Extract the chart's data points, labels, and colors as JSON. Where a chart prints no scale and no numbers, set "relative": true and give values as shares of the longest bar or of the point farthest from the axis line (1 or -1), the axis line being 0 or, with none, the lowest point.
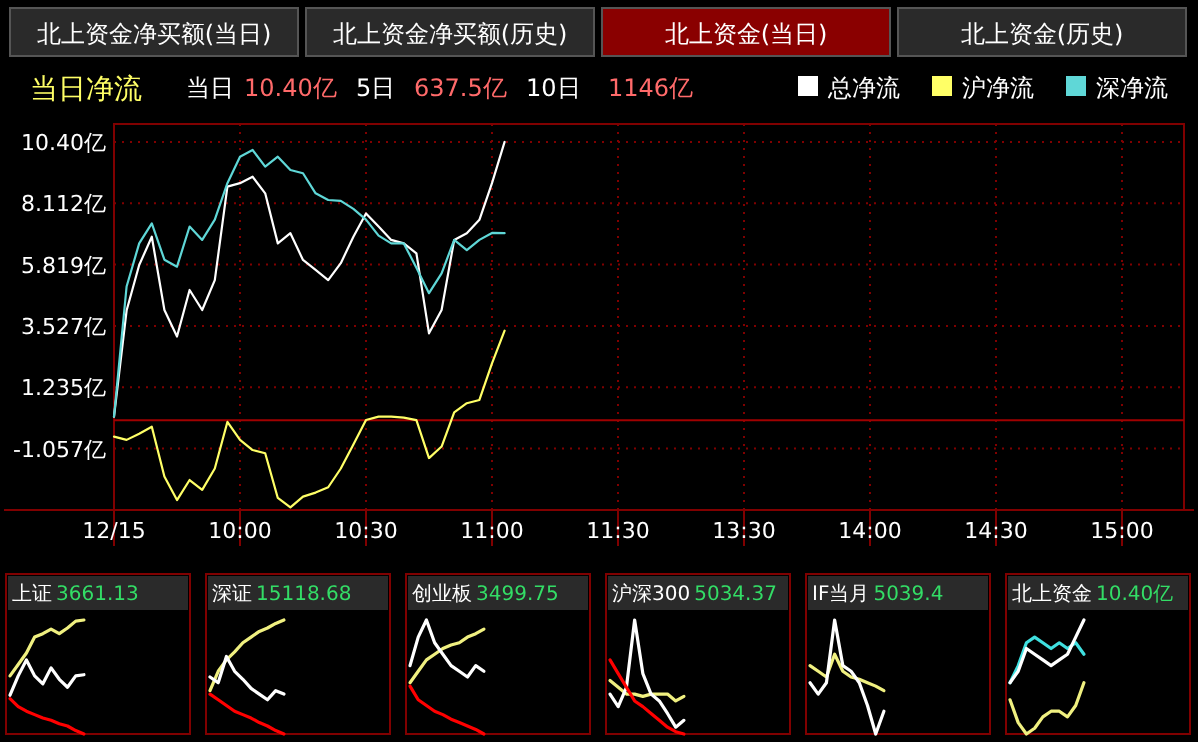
{
  "chart_data": [
    {
      "type": "line",
      "title": "当日净流",
      "annotations": [
        "北上资金净买额(当日)",
        "北上资金净买额(历史)",
        "北上资金(当日)",
        "北上资金(历史)",
        "当日",
        "10.40亿",
        "5日",
        "637.5亿",
        "10日",
        "1146亿"
      ],
      "categories": [
        "12/15",
        null,
        null,
        null,
        null,
        null,
        null,
        null,
        null,
        null,
        "10:00",
        null,
        null,
        null,
        null,
        null,
        null,
        null,
        null,
        null,
        "10:30",
        null,
        null,
        null,
        null,
        null,
        null,
        null,
        null,
        null,
        "11:00",
        null,
        null,
        null,
        null,
        null,
        null,
        null,
        null,
        null,
        "11:30",
        null,
        null,
        null,
        null,
        null,
        null,
        null,
        null,
        null,
        "13:30",
        null,
        null,
        null,
        null,
        null,
        null,
        null,
        null,
        null,
        "14:00",
        null,
        null,
        null,
        null,
        null,
        null,
        null,
        null,
        null,
        "14:30",
        null,
        null,
        null,
        null,
        null,
        null,
        null,
        null,
        null,
        "15:00"
      ],
      "ylim": [
        -3.35,
        11.07
      ],
      "yticks": [
        {
          "value": -1.057,
          "label": "-1.057亿"
        },
        {
          "value": 1.235,
          "label": "1.235亿"
        },
        {
          "value": 3.527,
          "label": "3.527亿"
        },
        {
          "value": 5.819,
          "label": "5.819亿"
        },
        {
          "value": 8.112,
          "label": "8.112亿"
        },
        {
          "value": 10.4,
          "label": "10.40亿"
        }
      ],
      "grid": true,
      "legend": "top right",
      "ref_lines": [
        {
          "axis": "y",
          "value": 0,
          "color": "#a00000"
        }
      ],
      "series": [
        {
          "name": "总净流",
          "color": "#ffffff",
          "values": [
            0.14,
            4.1,
            5.8,
            6.86,
            4.12,
            3.13,
            4.87,
            4.12,
            5.24,
            8.73,
            8.86,
            9.1,
            8.48,
            6.61,
            6.99,
            5.99,
            5.62,
            5.24,
            5.87,
            6.86,
            7.73,
            7.24,
            6.74,
            6.61,
            6.24,
            3.25,
            4.12,
            6.74,
            6.99,
            7.49,
            8.86,
            10.4,
            null,
            null,
            null,
            null,
            null,
            null,
            null,
            null,
            null,
            null,
            null,
            null,
            null,
            null,
            null,
            null,
            null,
            null,
            null,
            null,
            null,
            null,
            null,
            null,
            null,
            null,
            null,
            null,
            null,
            null,
            null,
            null,
            null,
            null,
            null,
            null,
            null,
            null,
            null,
            null,
            null,
            null,
            null,
            null,
            null,
            null,
            null,
            null,
            null
          ]
        },
        {
          "name": "沪净流",
          "color": "#ffff66",
          "values": [
            -0.61,
            -0.73,
            -0.5,
            -0.24,
            -2.1,
            -2.98,
            -2.23,
            -2.6,
            -1.8,
            -0.06,
            -0.73,
            -1.11,
            -1.23,
            -2.9,
            -3.25,
            -2.85,
            -2.7,
            -2.5,
            -1.8,
            -0.9,
            0.01,
            0.14,
            0.14,
            0.1,
            0.01,
            -1.41,
            -0.98,
            0.3,
            0.64,
            0.76,
            2.13,
            3.35,
            null,
            null,
            null,
            null,
            null,
            null,
            null,
            null,
            null,
            null,
            null,
            null,
            null,
            null,
            null,
            null,
            null,
            null,
            null,
            null,
            null,
            null,
            null,
            null,
            null,
            null,
            null,
            null,
            null,
            null,
            null,
            null,
            null,
            null,
            null,
            null,
            null,
            null,
            null,
            null,
            null,
            null,
            null,
            null,
            null,
            null,
            null,
            null,
            null
          ]
        },
        {
          "name": "深净流",
          "color": "#5fd7d7",
          "values": [
            0.14,
            5.0,
            6.61,
            7.36,
            6.0,
            5.74,
            7.24,
            6.74,
            7.5,
            8.86,
            9.85,
            10.1,
            9.48,
            9.85,
            9.35,
            9.23,
            8.48,
            8.23,
            8.2,
            7.9,
            7.5,
            6.9,
            6.61,
            6.61,
            5.7,
            4.75,
            5.49,
            6.74,
            6.36,
            6.74,
            7.0,
            6.99,
            null,
            null,
            null,
            null,
            null,
            null,
            null,
            null,
            null,
            null,
            null,
            null,
            null,
            null,
            null,
            null,
            null,
            null,
            null,
            null,
            null,
            null,
            null,
            null,
            null,
            null,
            null,
            null,
            null,
            null,
            null,
            null,
            null,
            null,
            null,
            null,
            null,
            null,
            null,
            null,
            null,
            null,
            null,
            null,
            null,
            null,
            null,
            null,
            null
          ]
        }
      ]
    },
    {
      "type": "line",
      "title": "上证",
      "subtitle": "3661.13",
      "relative": true,
      "categories": [
        null,
        null,
        null,
        null,
        null,
        null,
        null,
        null,
        null,
        null
      ],
      "series": [
        {
          "color": "#f0f080",
          "values": [
            0.51,
            0.61,
            0.71,
            0.85,
            0.88,
            0.92,
            0.88,
            0.93,
            0.99,
            1
          ]
        },
        {
          "color": "#ffffff",
          "values": [
            0.34,
            0.51,
            0.65,
            0.51,
            0.44,
            0.58,
            0.48,
            0.41,
            0.51,
            0.52
          ]
        },
        {
          "color": "#ff0000",
          "values": [
            0.31,
            0.24,
            0.2,
            0.17,
            0.14,
            0.12,
            0.09,
            0.07,
            0.03,
            0
          ]
        }
      ]
    },
    {
      "type": "line",
      "title": "深证",
      "subtitle": "15118.68",
      "relative": true,
      "categories": [
        null,
        null,
        null,
        null,
        null,
        null,
        null,
        null,
        null,
        null
      ],
      "series": [
        {
          "color": "#f0f080",
          "values": [
            0.38,
            0.55,
            0.65,
            0.72,
            0.8,
            0.85,
            0.9,
            0.93,
            0.97,
            1
          ]
        },
        {
          "color": "#ffffff",
          "values": [
            0.5,
            0.45,
            0.68,
            0.55,
            0.48,
            0.4,
            0.35,
            0.3,
            0.38,
            0.35
          ]
        },
        {
          "color": "#ff0000",
          "values": [
            0.35,
            0.3,
            0.25,
            0.2,
            0.17,
            0.14,
            0.1,
            0.07,
            0.03,
            0
          ]
        }
      ]
    },
    {
      "type": "line",
      "title": "创业板",
      "subtitle": "3499.75",
      "relative": true,
      "categories": [
        null,
        null,
        null,
        null,
        null,
        null,
        null,
        null,
        null,
        null
      ],
      "series": [
        {
          "color": "#f0f080",
          "values": [
            0.45,
            0.55,
            0.65,
            0.7,
            0.75,
            0.78,
            0.8,
            0.85,
            0.88,
            0.92
          ]
        },
        {
          "color": "#ffffff",
          "values": [
            0.6,
            0.85,
            1,
            0.8,
            0.7,
            0.6,
            0.55,
            0.5,
            0.6,
            0.55
          ]
        },
        {
          "color": "#ff0000",
          "values": [
            0.42,
            0.3,
            0.25,
            0.2,
            0.17,
            0.13,
            0.1,
            0.07,
            0.04,
            0
          ]
        }
      ]
    },
    {
      "type": "line",
      "title": "沪深300",
      "subtitle": "5034.37",
      "relative": true,
      "categories": [
        null,
        null,
        null,
        null,
        null,
        null,
        null,
        null,
        null,
        null
      ],
      "series": [
        {
          "color": "#f0f080",
          "values": [
            0.47,
            0.41,
            0.35,
            0.35,
            0.33,
            0.35,
            0.35,
            0.35,
            0.29,
            0.33
          ]
        },
        {
          "color": "#ffffff",
          "values": [
            0.35,
            0.24,
            0.41,
            1,
            0.53,
            0.35,
            0.29,
            0.18,
            0.06,
            0.12
          ]
        },
        {
          "color": "#ff0000",
          "values": [
            0.65,
            0.53,
            0.41,
            0.29,
            0.24,
            0.18,
            0.12,
            0.06,
            0.02,
            0
          ]
        }
      ]
    },
    {
      "type": "line",
      "title": "IF当月",
      "subtitle": "5039.4",
      "relative": true,
      "categories": [
        null,
        null,
        null,
        null,
        null,
        null,
        null,
        null,
        null,
        null
      ],
      "series": [
        {
          "color": "#f0f080",
          "values": [
            0.6,
            0.55,
            0.5,
            0.7,
            0.55,
            0.5,
            0.48,
            0.45,
            0.42,
            0.38
          ]
        },
        {
          "color": "#ffffff",
          "values": [
            0.45,
            0.35,
            0.45,
            1,
            0.6,
            0.55,
            0.45,
            0.25,
            0,
            0.2
          ]
        }
      ]
    },
    {
      "type": "line",
      "title": "北上资金",
      "subtitle": "10.40亿",
      "relative": true,
      "categories": [
        null,
        null,
        null,
        null,
        null,
        null,
        null,
        null,
        null,
        null
      ],
      "series": [
        {
          "color": "#f0f080",
          "values": [
            0.3,
            0.1,
            0,
            0.05,
            0.15,
            0.2,
            0.2,
            0.15,
            0.25,
            0.45
          ]
        },
        {
          "color": "#40e0e0",
          "values": [
            0.45,
            0.6,
            0.8,
            0.85,
            0.8,
            0.75,
            0.8,
            0.75,
            0.8,
            0.7
          ]
        },
        {
          "color": "#ffffff",
          "values": [
            0.45,
            0.55,
            0.75,
            0.7,
            0.65,
            0.6,
            0.65,
            0.7,
            0.85,
            1
          ]
        }
      ]
    }
  ]
}
